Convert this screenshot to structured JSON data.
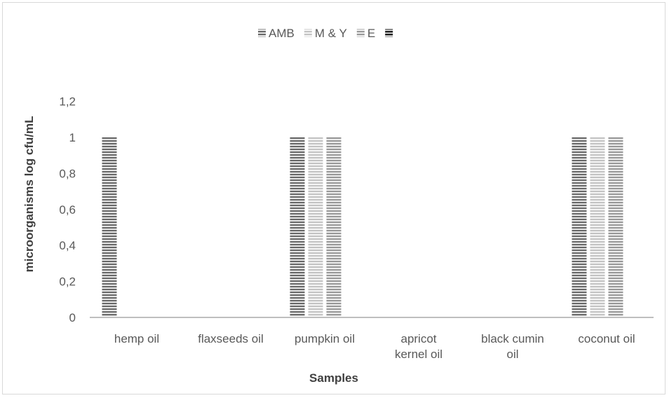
{
  "chart_data": {
    "type": "bar",
    "title": "",
    "xlabel": "Samples",
    "ylabel": "microorganisms log cfu/mL",
    "ylim": [
      0,
      1.2
    ],
    "yticks": [
      "0",
      "0,2",
      "0,4",
      "0,6",
      "0,8",
      "1",
      "1,2"
    ],
    "ytick_values": [
      0,
      0.2,
      0.4,
      0.6,
      0.8,
      1.0,
      1.2
    ],
    "grid": false,
    "legend_position": "top",
    "categories": [
      [
        "hemp oil"
      ],
      [
        "flaxseeds oil"
      ],
      [
        "pumpkin oil"
      ],
      [
        "apricot",
        "kernel oil"
      ],
      [
        "black cumin",
        "oil"
      ],
      [
        "coconut oil"
      ]
    ],
    "series": [
      {
        "name": "AMB",
        "values": [
          1,
          0,
          1,
          0,
          0,
          1
        ],
        "color": "#6b6b6b"
      },
      {
        "name": "M & Y",
        "values": [
          0,
          0,
          1,
          0,
          0,
          1
        ],
        "color": "#c4c4c4"
      },
      {
        "name": "E",
        "values": [
          0,
          0,
          1,
          0,
          0,
          1
        ],
        "color": "#9a9a9a"
      },
      {
        "name": "",
        "values": [
          0,
          0,
          0,
          0,
          0,
          0
        ],
        "color": "#222222"
      }
    ]
  }
}
